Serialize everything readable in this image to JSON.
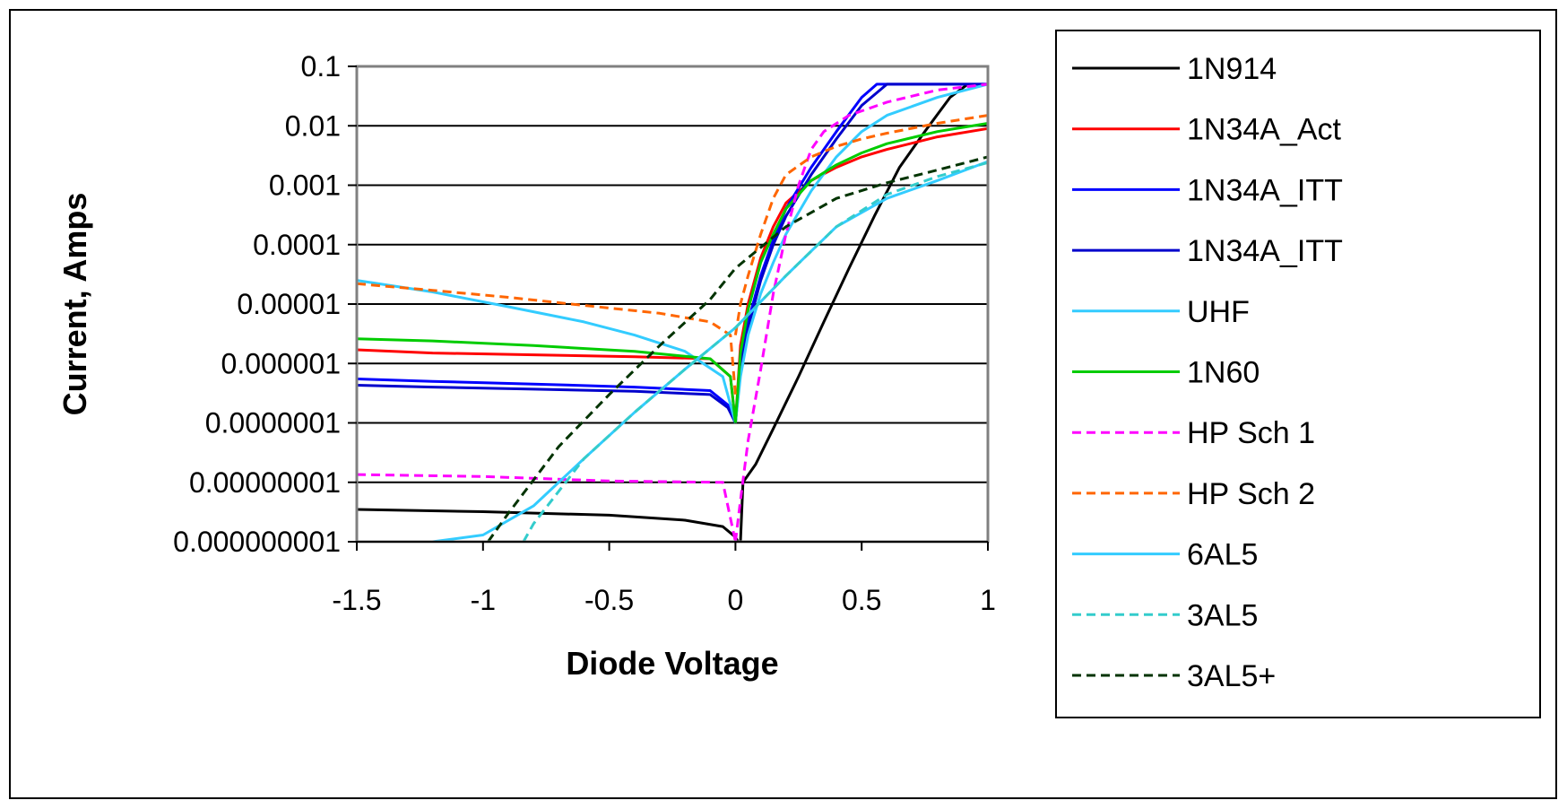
{
  "chart_data": {
    "type": "line",
    "title": "",
    "xlabel": "Diode Voltage",
    "ylabel": "Current, Amps",
    "xlim": [
      -1.5,
      1
    ],
    "ylim": [
      1e-09,
      0.1
    ],
    "yscale": "log",
    "grid": "horizontal",
    "legend_position": "right",
    "x_ticks": [
      "-1.5",
      "-1",
      "-0.5",
      "0",
      "0.5",
      "1"
    ],
    "x_tick_values": [
      -1.5,
      -1,
      -0.5,
      0,
      0.5,
      1
    ],
    "y_ticks": [
      "0.1",
      "0.01",
      "0.001",
      "0.0001",
      "0.00001",
      "0.000001",
      "0.0000001",
      "0.00000001",
      "0.000000001"
    ],
    "y_tick_values": [
      0.1,
      0.01,
      0.001,
      0.0001,
      1e-05,
      1e-06,
      1e-07,
      1e-08,
      1e-09
    ],
    "series": [
      {
        "name": "1N914",
        "color": "#000000",
        "dash": "solid",
        "x": [
          0.02,
          0.03,
          0.08,
          0.15,
          0.25,
          0.35,
          0.45,
          0.55,
          0.65,
          0.75,
          0.85,
          0.92
        ],
        "y": [
          1e-09,
          1e-08,
          2e-08,
          8e-08,
          6e-07,
          5e-06,
          4e-05,
          0.0003,
          0.002,
          0.008,
          0.03,
          0.05
        ],
        "x_rev": [
          -1.5,
          -1.0,
          -0.5,
          -0.2,
          -0.05,
          0.0,
          0.01
        ],
        "y_rev": [
          3.5e-09,
          3.2e-09,
          2.8e-09,
          2.3e-09,
          1.8e-09,
          1.2e-09,
          1e-09
        ]
      },
      {
        "name": "1N34A_Act",
        "color": "#ff0000",
        "dash": "solid",
        "x": [
          0.0,
          0.02,
          0.05,
          0.1,
          0.15,
          0.2,
          0.3,
          0.4,
          0.5,
          0.6,
          0.8,
          1.0
        ],
        "y": [
          1e-07,
          2e-06,
          1e-05,
          6e-05,
          0.0002,
          0.0005,
          0.0012,
          0.002,
          0.003,
          0.004,
          0.0065,
          0.009
        ],
        "x_rev": [
          -1.5,
          -1.2,
          -0.8,
          -0.4,
          -0.1,
          -0.02,
          0.0
        ],
        "y_rev": [
          1.7e-06,
          1.5e-06,
          1.4e-06,
          1.3e-06,
          1.2e-06,
          6e-07,
          1e-07
        ]
      },
      {
        "name": "1N34A_ITT",
        "color": "#0000ff",
        "dash": "solid",
        "x": [
          0.0,
          0.02,
          0.05,
          0.1,
          0.15,
          0.2,
          0.3,
          0.4,
          0.5,
          0.56,
          1.0
        ],
        "y": [
          1e-07,
          1e-06,
          5e-06,
          3e-05,
          0.00012,
          0.0004,
          0.002,
          0.008,
          0.03,
          0.05,
          0.05
        ],
        "x_rev": [
          -1.5,
          -1.2,
          -0.8,
          -0.4,
          -0.1,
          -0.03,
          0.0
        ],
        "y_rev": [
          5.5e-07,
          5e-07,
          4.5e-07,
          4e-07,
          3.5e-07,
          2e-07,
          1e-07
        ]
      },
      {
        "name": "1N34A_ITT",
        "color": "#0000cc",
        "dash": "solid",
        "x": [
          0.0,
          0.02,
          0.05,
          0.1,
          0.15,
          0.2,
          0.3,
          0.4,
          0.5,
          0.6,
          1.0
        ],
        "y": [
          1e-07,
          8e-07,
          4e-06,
          2.5e-05,
          0.0001,
          0.0003,
          0.0015,
          0.006,
          0.022,
          0.05,
          0.05
        ],
        "x_rev": [
          -1.5,
          -1.2,
          -0.8,
          -0.4,
          -0.1,
          -0.03,
          0.0
        ],
        "y_rev": [
          4.3e-07,
          4e-07,
          3.7e-07,
          3.4e-07,
          3e-07,
          1.8e-07,
          1e-07
        ]
      },
      {
        "name": "UHF",
        "color": "#33ccff",
        "dash": "solid",
        "x": [
          0.0,
          0.02,
          0.05,
          0.1,
          0.15,
          0.2,
          0.3,
          0.4,
          0.5,
          0.6,
          0.8,
          1.0
        ],
        "y": [
          1e-07,
          6e-07,
          3e-06,
          1.5e-05,
          5e-05,
          0.00015,
          0.0008,
          0.003,
          0.008,
          0.015,
          0.03,
          0.05
        ],
        "x_rev": [
          -1.5,
          -1.2,
          -0.9,
          -0.6,
          -0.4,
          -0.2,
          -0.05,
          0.0
        ],
        "y_rev": [
          2.5e-05,
          1.6e-05,
          9e-06,
          5e-06,
          3e-06,
          1.6e-06,
          6e-07,
          1e-07
        ]
      },
      {
        "name": "1N60",
        "color": "#00cc00",
        "dash": "solid",
        "x": [
          0.0,
          0.02,
          0.05,
          0.1,
          0.15,
          0.2,
          0.3,
          0.4,
          0.5,
          0.6,
          0.8,
          1.0
        ],
        "y": [
          1e-07,
          1.5e-06,
          8e-06,
          5e-05,
          0.00015,
          0.0004,
          0.0012,
          0.0022,
          0.0035,
          0.005,
          0.008,
          0.011
        ],
        "x_rev": [
          -1.5,
          -1.2,
          -0.8,
          -0.4,
          -0.1,
          -0.02,
          0.0
        ],
        "y_rev": [
          2.6e-06,
          2.4e-06,
          2e-06,
          1.6e-06,
          1.2e-06,
          6e-07,
          1e-07
        ]
      },
      {
        "name": "HP Sch 1",
        "color": "#ff00ff",
        "dash": "dashed",
        "x": [
          0.0,
          0.02,
          0.05,
          0.1,
          0.15,
          0.2,
          0.25,
          0.3,
          0.35,
          0.45,
          0.6,
          0.8,
          1.0
        ],
        "y": [
          1e-09,
          5e-09,
          5e-08,
          8e-07,
          1.5e-05,
          0.00015,
          0.001,
          0.004,
          0.008,
          0.015,
          0.025,
          0.04,
          0.05
        ],
        "x_rev": [
          -1.5,
          -1.0,
          -0.5,
          -0.05,
          0.0
        ],
        "y_rev": [
          1.35e-08,
          1.25e-08,
          1.05e-08,
          1e-08,
          1e-09
        ]
      },
      {
        "name": "HP Sch 2",
        "color": "#ff6600",
        "dash": "dashed",
        "x": [
          0.0,
          0.02,
          0.05,
          0.1,
          0.15,
          0.2,
          0.3,
          0.4,
          0.5,
          0.6,
          0.8,
          1.0
        ],
        "y": [
          3e-06,
          1e-05,
          3e-05,
          0.00015,
          0.0006,
          0.0015,
          0.003,
          0.0045,
          0.006,
          0.0075,
          0.011,
          0.015
        ],
        "x_rev": [
          -1.5,
          -1.2,
          -0.9,
          -0.6,
          -0.3,
          -0.1,
          -0.02,
          0.0
        ],
        "y_rev": [
          2.2e-05,
          1.7e-05,
          1.3e-05,
          9.5e-06,
          7e-06,
          5e-06,
          3e-06,
          3e-07
        ]
      },
      {
        "name": "6AL5",
        "color": "#33ccff",
        "dash": "solid",
        "x": [
          -1.5,
          -1.2,
          -1.0,
          -0.8,
          -0.6,
          -0.4,
          -0.2,
          0.0,
          0.2,
          0.4,
          0.6,
          0.8,
          1.0
        ],
        "y": [
          1e-09,
          1e-09,
          1.3e-09,
          4e-09,
          2.5e-08,
          1.5e-07,
          8e-07,
          4e-06,
          3e-05,
          0.0002,
          0.0006,
          0.0012,
          0.0025
        ]
      },
      {
        "name": "3AL5",
        "color": "#33cccc",
        "dash": "dashed",
        "x": [
          -0.84,
          -0.8,
          -0.6,
          -0.4,
          -0.2,
          0.0,
          0.2,
          0.4,
          0.6,
          0.8,
          1.0
        ],
        "y": [
          1e-09,
          2e-09,
          2.5e-08,
          1.5e-07,
          8e-07,
          4e-06,
          3e-05,
          0.0002,
          0.0007,
          0.0014,
          0.0024
        ]
      },
      {
        "name": "3AL5+",
        "color": "#003300",
        "dash": "dashed",
        "x": [
          -0.98,
          -0.9,
          -0.7,
          -0.5,
          -0.3,
          -0.1,
          0.0,
          0.2,
          0.4,
          0.6,
          0.8,
          1.0
        ],
        "y": [
          1e-09,
          3e-09,
          4e-08,
          3e-07,
          2e-06,
          1.2e-05,
          4e-05,
          0.0002,
          0.0006,
          0.0011,
          0.0018,
          0.003
        ]
      }
    ]
  }
}
